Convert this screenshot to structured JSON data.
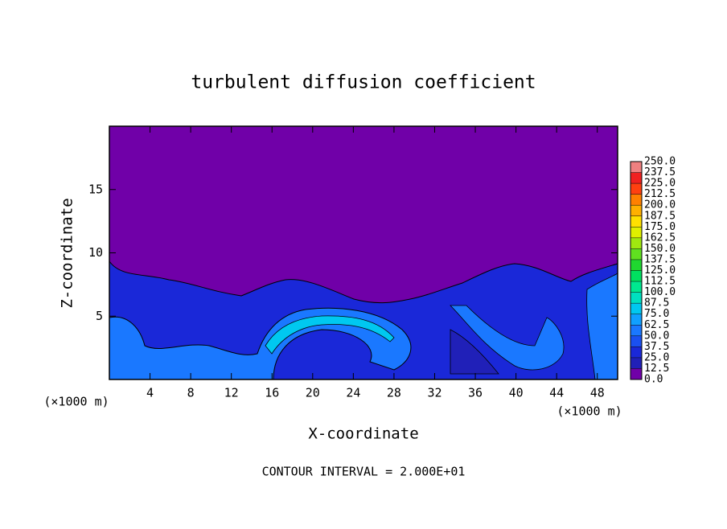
{
  "chart_data": {
    "type": "contour",
    "title": "turbulent diffusion coefficient",
    "x_label": "X-coordinate",
    "y_label": "Z-coordinate",
    "x_unit_label": "(×1000 m)",
    "x_unit_label_right": "(×1000 m)",
    "note": "CONTOUR INTERVAL = 2.000E+01",
    "xlim": [
      0,
      50
    ],
    "xticks": [
      4,
      8,
      12,
      16,
      20,
      24,
      28,
      32,
      36,
      40,
      44,
      48
    ],
    "ylim": [
      0,
      20
    ],
    "yticks": [
      5,
      10,
      15
    ],
    "colorbar": {
      "levels": [
        {
          "value": 0,
          "label": "0.0"
        },
        {
          "value": 12.5,
          "label": "12.5"
        },
        {
          "value": 25,
          "label": "25.0"
        },
        {
          "value": 37.5,
          "label": "37.5"
        },
        {
          "value": 50,
          "label": "50.0"
        },
        {
          "value": 62.5,
          "label": "62.5"
        },
        {
          "value": 75,
          "label": "75.0"
        },
        {
          "value": 87.5,
          "label": "87.5"
        },
        {
          "value": 100,
          "label": "100.0"
        },
        {
          "value": 112.5,
          "label": "112.5"
        },
        {
          "value": 125,
          "label": "125.0"
        },
        {
          "value": 137.5,
          "label": "137.5"
        },
        {
          "value": 150,
          "label": "150.0"
        },
        {
          "value": 162.5,
          "label": "162.5"
        },
        {
          "value": 175,
          "label": "175.0"
        },
        {
          "value": 187.5,
          "label": "187.5"
        },
        {
          "value": 200,
          "label": "200.0"
        },
        {
          "value": 212.5,
          "label": "212.5"
        },
        {
          "value": 225,
          "label": "225.0"
        },
        {
          "value": 237.5,
          "label": "237.5"
        },
        {
          "value": 250,
          "label": "250.0"
        }
      ],
      "colors": [
        "#7000a8",
        "#2020b8",
        "#1a28d8",
        "#1a50f0",
        "#1a78ff",
        "#10a0ff",
        "#00c8f0",
        "#00e0c0",
        "#00e890",
        "#00e060",
        "#20d830",
        "#60e020",
        "#a0e810",
        "#e0f000",
        "#ffe000",
        "#ffb000",
        "#ff8000",
        "#ff4010",
        "#f02020",
        "#f08080"
      ]
    }
  }
}
